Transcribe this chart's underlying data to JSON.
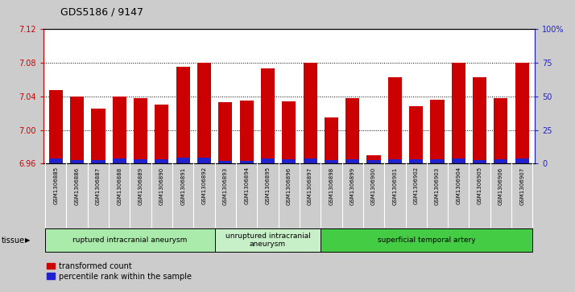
{
  "title": "GDS5186 / 9147",
  "samples": [
    "GSM1306885",
    "GSM1306886",
    "GSM1306887",
    "GSM1306888",
    "GSM1306889",
    "GSM1306890",
    "GSM1306891",
    "GSM1306892",
    "GSM1306893",
    "GSM1306894",
    "GSM1306895",
    "GSM1306896",
    "GSM1306897",
    "GSM1306898",
    "GSM1306899",
    "GSM1306900",
    "GSM1306901",
    "GSM1306902",
    "GSM1306903",
    "GSM1306904",
    "GSM1306905",
    "GSM1306906",
    "GSM1306907"
  ],
  "red_values": [
    7.047,
    7.04,
    7.025,
    7.04,
    7.038,
    7.03,
    7.075,
    7.08,
    7.033,
    7.035,
    7.073,
    7.034,
    7.08,
    7.015,
    7.038,
    6.97,
    7.063,
    7.028,
    7.036,
    7.08,
    7.063,
    7.038,
    7.08
  ],
  "blue_values": [
    3.5,
    2.5,
    2.5,
    3.5,
    3.0,
    3.0,
    4.5,
    4.5,
    2.0,
    2.0,
    3.5,
    3.0,
    3.5,
    2.5,
    3.0,
    2.5,
    3.0,
    3.0,
    3.0,
    3.5,
    2.5,
    3.0,
    4.0
  ],
  "baseline": 6.96,
  "ylim_left": [
    6.96,
    7.12
  ],
  "yticks_left": [
    6.96,
    7.0,
    7.04,
    7.08,
    7.12
  ],
  "yticks_right": [
    0,
    25,
    50,
    75,
    100
  ],
  "ylim_right": [
    0,
    100
  ],
  "groups": [
    {
      "label": "ruptured intracranial aneurysm",
      "start": 0,
      "end": 8,
      "color": "#aaeaaa"
    },
    {
      "label": "unruptured intracranial\naneurysm",
      "start": 8,
      "end": 13,
      "color": "#c8f0c8"
    },
    {
      "label": "superficial temporal artery",
      "start": 13,
      "end": 23,
      "color": "#44cc44"
    }
  ],
  "bar_color": "#cc0000",
  "blue_color": "#2222cc",
  "background_color": "#cccccc",
  "plot_bg_color": "#ffffff",
  "label_bg_color": "#cccccc",
  "grid_color": "#000000",
  "left_axis_color": "#cc0000",
  "right_axis_color": "#2222cc",
  "legend_red": "transformed count",
  "legend_blue": "percentile rank within the sample",
  "tissue_label": "tissue"
}
